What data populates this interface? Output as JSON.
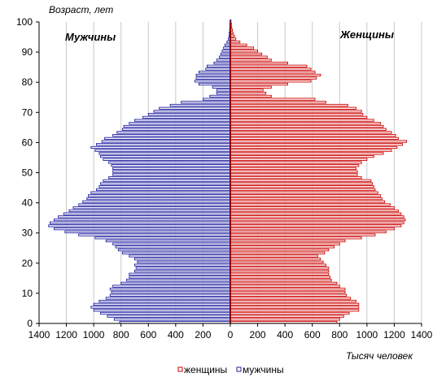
{
  "chart_data": {
    "type": "bar",
    "orientation": "horizontal-population-pyramid",
    "ylabel": "Возраст,  лет",
    "xlabel": "Тысяч человек",
    "male_label": "Мужчины",
    "female_label": "Женщины",
    "xlim": [
      -1400,
      1400
    ],
    "ylim": [
      0,
      100
    ],
    "x_ticks": [
      "1400",
      "1200",
      "1000",
      "800",
      "600",
      "400",
      "200",
      "0",
      "200",
      "400",
      "600",
      "800",
      "1000",
      "1200",
      "1400"
    ],
    "y_ticks": [
      "0",
      "10",
      "20",
      "30",
      "40",
      "50",
      "60",
      "70",
      "80",
      "90",
      "100"
    ],
    "grid": "vertical",
    "legend_position": "bottom",
    "colors": {
      "female": "#cc0000",
      "male": "#1f1fa0",
      "center": "#8b0000",
      "grid": "#c8c8c8"
    },
    "ages": [
      0,
      1,
      2,
      3,
      4,
      5,
      6,
      7,
      8,
      9,
      10,
      11,
      12,
      13,
      14,
      15,
      16,
      17,
      18,
      19,
      20,
      21,
      22,
      23,
      24,
      25,
      26,
      27,
      28,
      29,
      30,
      31,
      32,
      33,
      34,
      35,
      36,
      37,
      38,
      39,
      40,
      41,
      42,
      43,
      44,
      45,
      46,
      47,
      48,
      49,
      50,
      51,
      52,
      53,
      54,
      55,
      56,
      57,
      58,
      59,
      60,
      61,
      62,
      63,
      64,
      65,
      66,
      67,
      68,
      69,
      70,
      71,
      72,
      73,
      74,
      75,
      76,
      77,
      78,
      79,
      80,
      81,
      82,
      83,
      84,
      85,
      86,
      87,
      88,
      89,
      90,
      91,
      92,
      93,
      94,
      95,
      96,
      97,
      98,
      99,
      100
    ],
    "series": [
      {
        "name": "женщины",
        "values": [
          780,
          800,
          830,
          870,
          940,
          940,
          940,
          920,
          880,
          850,
          840,
          840,
          800,
          780,
          740,
          730,
          720,
          720,
          720,
          700,
          680,
          660,
          640,
          690,
          720,
          760,
          800,
          840,
          960,
          1060,
          1140,
          1200,
          1250,
          1270,
          1280,
          1270,
          1250,
          1230,
          1200,
          1170,
          1130,
          1110,
          1100,
          1080,
          1060,
          1050,
          1040,
          1030,
          960,
          930,
          930,
          920,
          940,
          960,
          1000,
          1050,
          1120,
          1180,
          1220,
          1260,
          1290,
          1230,
          1210,
          1180,
          1140,
          1120,
          1100,
          1050,
          1000,
          970,
          960,
          920,
          860,
          700,
          620,
          300,
          260,
          240,
          300,
          420,
          590,
          630,
          660,
          620,
          590,
          560,
          420,
          300,
          270,
          230,
          200,
          170,
          120,
          70,
          40,
          30,
          20,
          15,
          10,
          8,
          5
        ]
      },
      {
        "name": "мужчины",
        "values": [
          810,
          850,
          900,
          950,
          1000,
          1020,
          1000,
          960,
          910,
          880,
          870,
          880,
          860,
          800,
          760,
          740,
          740,
          700,
          690,
          700,
          680,
          700,
          740,
          790,
          820,
          840,
          860,
          910,
          990,
          1110,
          1210,
          1290,
          1330,
          1320,
          1290,
          1260,
          1220,
          1180,
          1150,
          1110,
          1080,
          1050,
          1040,
          1020,
          980,
          960,
          950,
          930,
          890,
          860,
          860,
          860,
          870,
          890,
          930,
          950,
          960,
          990,
          1020,
          980,
          940,
          920,
          860,
          830,
          790,
          780,
          740,
          700,
          640,
          600,
          560,
          520,
          440,
          360,
          200,
          150,
          100,
          100,
          130,
          230,
          260,
          250,
          250,
          230,
          180,
          170,
          120,
          100,
          80,
          70,
          60,
          50,
          40,
          25,
          15,
          10,
          8,
          5,
          4,
          3,
          2
        ]
      }
    ]
  },
  "legend": {
    "female_label": "женщины",
    "male_label": "мужчины"
  }
}
